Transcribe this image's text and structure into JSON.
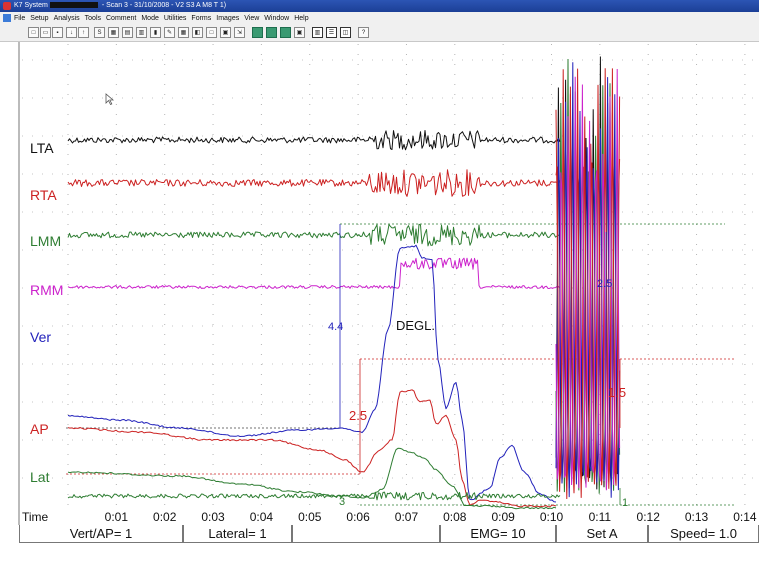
{
  "window": {
    "title_prefix": "K7 System",
    "title_suffix": "- Scan 3 - 31/10/2008 - V2 S3 A  M8  T 1)"
  },
  "menu": [
    "File",
    "Setup",
    "Analysis",
    "Tools",
    "Comment",
    "Mode",
    "Utilities",
    "Forms",
    "Images",
    "View",
    "Window",
    "Help"
  ],
  "toolbar": {
    "icons": [
      "new-icon",
      "open-icon",
      "save-icon",
      "arrow-down-icon",
      "arrow-up-icon",
      "scan-icon",
      "grid-icon",
      "table-icon",
      "layout-icon",
      "bars-icon",
      "pencil-icon",
      "chart-icon",
      "compare-icon",
      "print-preview-icon",
      "print-icon",
      "export-icon",
      "green-1-icon",
      "green-2-icon",
      "green-3-icon",
      "printer-icon",
      "columns-icon",
      "rows-icon",
      "split-icon",
      "help-icon"
    ]
  },
  "chart_data": {
    "type": "line",
    "xlabel": "Time",
    "x_ticks": [
      "0:01",
      "0:02",
      "0:03",
      "0:04",
      "0:05",
      "0:06",
      "0:07",
      "0:08",
      "0:09",
      "0:10",
      "0:11",
      "0:12",
      "0:13",
      "0:14"
    ],
    "xlim": [
      0,
      14.4
    ],
    "grid": true,
    "series": [
      {
        "name": "LTA",
        "color": "#111111"
      },
      {
        "name": "RTA",
        "color": "#cc2222"
      },
      {
        "name": "LMM",
        "color": "#2e7d32"
      },
      {
        "name": "RMM",
        "color": "#cc22cc"
      },
      {
        "name": "Ver",
        "color": "#2222bb"
      },
      {
        "name": "AP",
        "color": "#cc2222"
      },
      {
        "name": "Lat",
        "color": "#2e7d32"
      }
    ],
    "annotations": [
      {
        "text": "4.4",
        "color": "#2222bb"
      },
      {
        "text": "DEGL.",
        "color": "#111111"
      },
      {
        "text": "2.5",
        "color": "#cc2222"
      },
      {
        "text": "2.5",
        "color": "#2222bb"
      },
      {
        "text": "1.5",
        "color": "#cc2222"
      },
      {
        "text": "3",
        "color": "#2e7d32"
      },
      {
        "text": "1",
        "color": "#2e7d32"
      }
    ]
  },
  "status": {
    "vert_ap": "Vert/AP= 1",
    "lateral": "Lateral= 1",
    "blank": "",
    "emg": "EMG= 10",
    "set": "Set A",
    "speed": "Speed= 1.0"
  }
}
